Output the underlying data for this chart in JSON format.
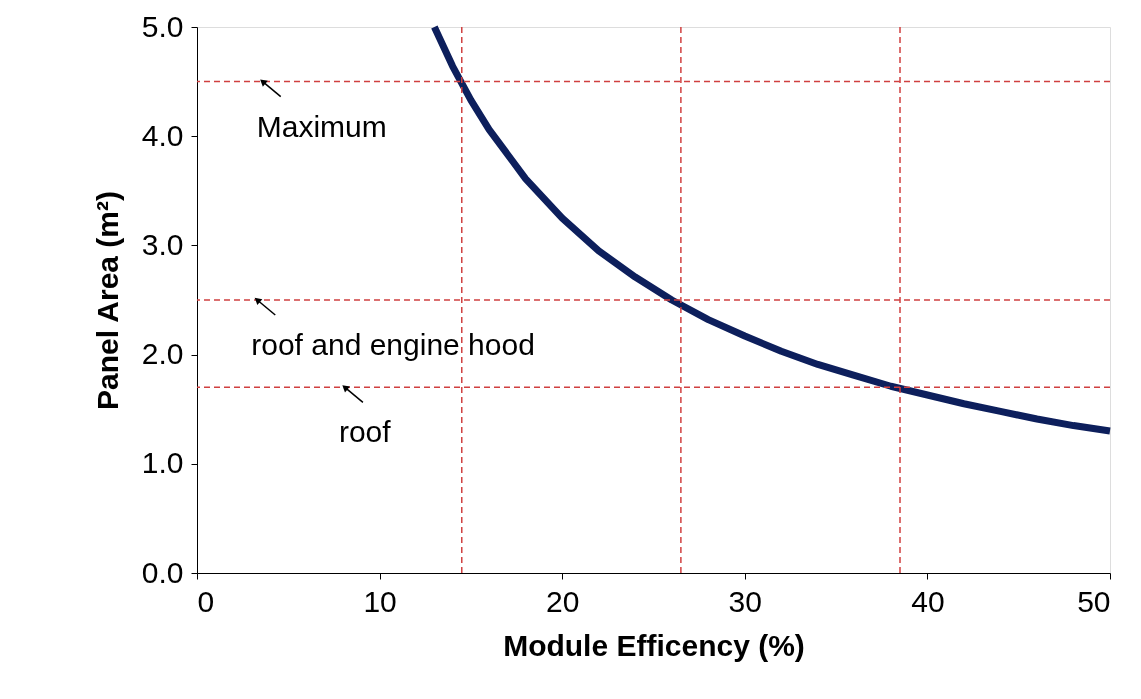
{
  "chart_data": {
    "type": "line",
    "xlabel": "Module Efficency (%)",
    "ylabel": "Panel Area (m²)",
    "x": [
      13,
      14,
      15,
      16,
      18,
      20,
      22,
      24,
      26,
      28,
      30,
      32,
      34,
      36,
      38,
      40,
      42,
      44,
      46,
      48,
      50
    ],
    "series": [
      {
        "color": "#0d1f5c",
        "values": [
          5.0,
          4.64,
          4.33,
          4.06,
          3.61,
          3.25,
          2.95,
          2.71,
          2.5,
          2.32,
          2.17,
          2.03,
          1.91,
          1.81,
          1.71,
          1.63,
          1.55,
          1.48,
          1.41,
          1.35,
          1.3
        ]
      }
    ],
    "xlim": [
      0,
      50
    ],
    "xticks": [
      0,
      10,
      20,
      30,
      40,
      50
    ],
    "ylim": [
      0,
      5
    ],
    "yticks": [
      {
        "value": 0,
        "label": "0.0"
      },
      {
        "value": 1,
        "label": "1.0"
      },
      {
        "value": 2,
        "label": "2.0"
      },
      {
        "value": 3,
        "label": "3.0"
      },
      {
        "value": 4,
        "label": "4.0"
      },
      {
        "value": 5,
        "label": "5.0"
      }
    ],
    "ref_lines": [
      {
        "axis": "y",
        "value": 4.5,
        "color": "#d04040",
        "line_style": "dashed"
      },
      {
        "axis": "y",
        "value": 2.5,
        "color": "#d04040",
        "line_style": "dashed"
      },
      {
        "axis": "y",
        "value": 1.7,
        "color": "#d04040",
        "line_style": "dashed"
      },
      {
        "axis": "x",
        "value": 14.5,
        "color": "#d04040",
        "line_style": "dashed"
      },
      {
        "axis": "x",
        "value": 26.5,
        "color": "#d04040",
        "line_style": "dashed"
      },
      {
        "axis": "x",
        "value": 38.5,
        "color": "#d04040",
        "line_style": "dashed"
      }
    ],
    "annotations": [
      {
        "text": "Maximum",
        "x": 3.6,
        "y": 4.5
      },
      {
        "text": "roof and engine hood",
        "x": 3.3,
        "y": 2.5
      },
      {
        "text": "roof",
        "x": 8.1,
        "y": 1.7
      }
    ],
    "grid": false,
    "marker": "none",
    "line_style": "solid"
  }
}
